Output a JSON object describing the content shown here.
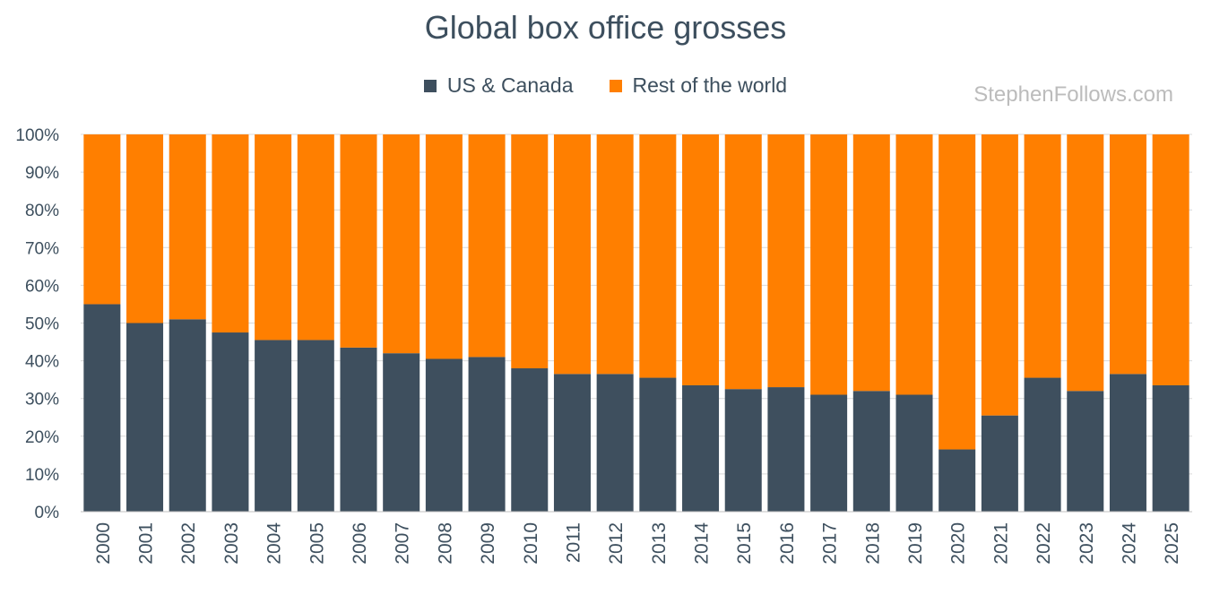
{
  "chart_data": {
    "type": "bar",
    "stacked": true,
    "title": "Global box office grosses",
    "watermark": "StephenFollows.com",
    "categories": [
      "2000",
      "2001",
      "2002",
      "2003",
      "2004",
      "2005",
      "2006",
      "2007",
      "2008",
      "2009",
      "2010",
      "2011",
      "2012",
      "2013",
      "2014",
      "2015",
      "2016",
      "2017",
      "2018",
      "2019",
      "2020",
      "2021",
      "2022",
      "2023",
      "2024",
      "2025"
    ],
    "series": [
      {
        "name": "US & Canada",
        "color": "#3e4f5e",
        "values": [
          55,
          50,
          51,
          47.5,
          45.5,
          45.5,
          43.5,
          42,
          40.5,
          41,
          38,
          36.5,
          36.5,
          35.5,
          33.5,
          32.5,
          33,
          31,
          32,
          31,
          16.5,
          25.5,
          35.5,
          32,
          36.5,
          33.5
        ]
      },
      {
        "name": "Rest of the world",
        "color": "#ff7f00",
        "values": [
          45,
          50,
          49,
          52.5,
          54.5,
          54.5,
          56.5,
          58,
          59.5,
          59,
          62,
          63.5,
          63.5,
          64.5,
          66.5,
          67.5,
          67,
          69,
          68,
          69,
          83.5,
          74.5,
          64.5,
          68,
          63.5,
          66.5
        ]
      }
    ],
    "yticks": [
      "0%",
      "10%",
      "20%",
      "30%",
      "40%",
      "50%",
      "60%",
      "70%",
      "80%",
      "90%",
      "100%"
    ],
    "ylim": [
      0,
      100
    ],
    "grid": true,
    "legend_position": "top-center"
  }
}
